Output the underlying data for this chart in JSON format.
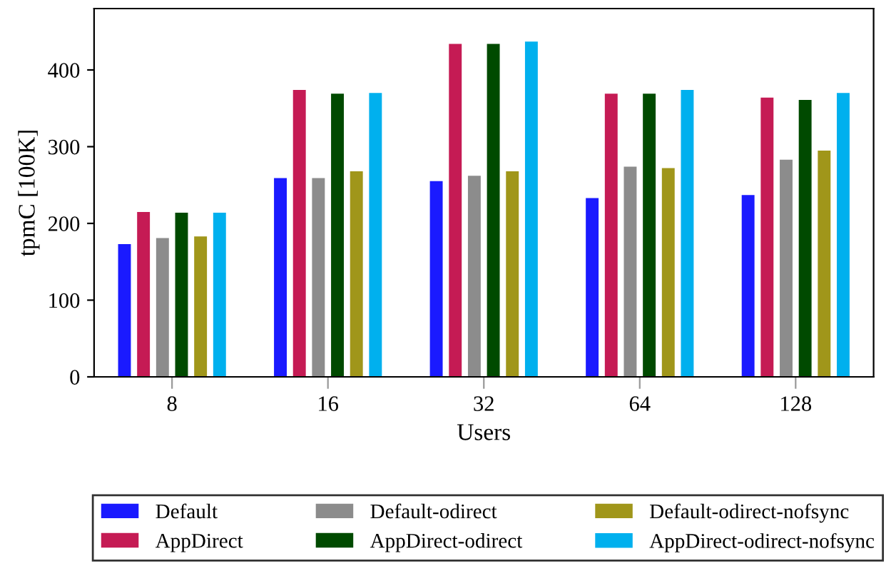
{
  "chart_data": {
    "type": "bar",
    "xlabel": "Users",
    "ylabel": "tpmC [100K]",
    "categories": [
      "8",
      "16",
      "32",
      "64",
      "128"
    ],
    "ylim": [
      0,
      480
    ],
    "yticks": [
      0,
      100,
      200,
      300,
      400
    ],
    "grid": false,
    "legend": "bottom",
    "series": [
      {
        "name": "Default",
        "color": "#1a1aff",
        "values": [
          173,
          259,
          255,
          233,
          237
        ]
      },
      {
        "name": "AppDirect",
        "color": "#c51b54",
        "values": [
          215,
          374,
          434,
          369,
          364
        ]
      },
      {
        "name": "Default-odirect",
        "color": "#8c8c8c",
        "values": [
          181,
          259,
          262,
          274,
          283
        ]
      },
      {
        "name": "AppDirect-odirect",
        "color": "#004a00",
        "values": [
          214,
          369,
          434,
          369,
          361
        ]
      },
      {
        "name": "Default-odirect-nofsync",
        "color": "#a0961a",
        "values": [
          183,
          268,
          268,
          272,
          295
        ]
      },
      {
        "name": "AppDirect-odirect-nofsync",
        "color": "#00b0ee",
        "values": [
          214,
          370,
          437,
          374,
          370
        ]
      }
    ]
  }
}
